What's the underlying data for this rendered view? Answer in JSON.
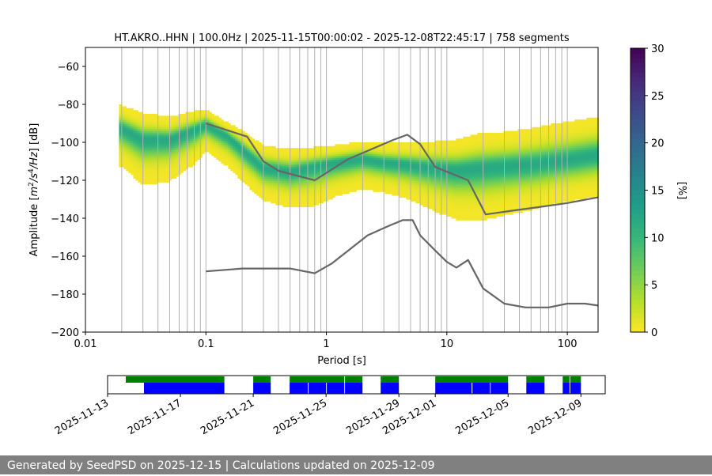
{
  "chart_data": {
    "type": "heatmap",
    "title": "HT.AKRO..HHN | 100.0Hz | 2025-11-15T00:00:02 - 2025-12-08T22:45:17 | 758 segments",
    "xlabel": "Period [s]",
    "ylabel": "Amplitude [m²/s⁴/Hz] [dB]",
    "xscale": "log",
    "xlim": [
      0.01,
      180
    ],
    "ylim": [
      -200,
      -50
    ],
    "xticks": [
      {
        "value": 0.01,
        "label": "0.01"
      },
      {
        "value": 0.1,
        "label": "0.1"
      },
      {
        "value": 1,
        "label": "1"
      },
      {
        "value": 10,
        "label": "10"
      },
      {
        "value": 100,
        "label": "100"
      }
    ],
    "yticks": [
      -60,
      -80,
      -100,
      -120,
      -140,
      -160,
      -180,
      -200
    ],
    "grid_x_periods": [
      0.02,
      0.03,
      0.04,
      0.05,
      0.06,
      0.07,
      0.08,
      0.09,
      0.1,
      0.2,
      0.3,
      0.4,
      0.5,
      0.6,
      0.7,
      0.8,
      0.9,
      1,
      2,
      3,
      4,
      5,
      6,
      7,
      8,
      9,
      10,
      20,
      30,
      40,
      50,
      60,
      70,
      80,
      90,
      100
    ],
    "colorbar": {
      "label": "[%]",
      "min": 0,
      "max": 30,
      "ticks": [
        0,
        5,
        10,
        15,
        20,
        25,
        30
      ],
      "colormap": "viridis_r"
    },
    "psd_envelope": {
      "periods": [
        0.02,
        0.03,
        0.05,
        0.08,
        0.1,
        0.15,
        0.2,
        0.3,
        0.5,
        0.8,
        1.2,
        2,
        3,
        4.5,
        6,
        8,
        12,
        18,
        30,
        50,
        90,
        180
      ],
      "mode": [
        -93,
        -99,
        -99,
        -94,
        -91,
        -97,
        -104,
        -114,
        -116,
        -113,
        -111,
        -109,
        -111,
        -112,
        -113,
        -114,
        -115,
        -114,
        -113,
        -112,
        -110,
        -107
      ],
      "spread_upper": [
        12,
        14,
        12,
        10,
        8,
        7,
        10,
        12,
        12,
        10,
        9,
        9,
        10,
        11,
        12,
        14,
        16,
        18,
        18,
        19,
        20,
        20
      ],
      "spread_lower": [
        20,
        24,
        22,
        18,
        14,
        16,
        17,
        17,
        19,
        21,
        18,
        16,
        16,
        18,
        20,
        23,
        26,
        28,
        26,
        24,
        22,
        22
      ],
      "start_period": 0.019,
      "end_period": 180
    },
    "series": [
      {
        "color": "#666666",
        "x": [
          0.1,
          0.22,
          0.3,
          0.4,
          0.8,
          1.5,
          3.5,
          4.7,
          6,
          8,
          15,
          21,
          35,
          60,
          100,
          180
        ],
        "y": [
          -90,
          -97,
          -110,
          -115,
          -120,
          -109,
          -99,
          -96,
          -101,
          -113,
          -120,
          -138,
          -136,
          -134,
          -132,
          -129
        ]
      },
      {
        "color": "#666666",
        "x": [
          0.1,
          0.16,
          0.2,
          0.3,
          0.5,
          0.8,
          1.1,
          2.2,
          3.3,
          4.3,
          5.2,
          6,
          8,
          10,
          12,
          15,
          20,
          30,
          45,
          70,
          100,
          140,
          180
        ],
        "y": [
          -168,
          -167,
          -166.5,
          -166.5,
          -166.5,
          -169,
          -164,
          -149,
          -144,
          -141,
          -141,
          -149,
          -157,
          -163,
          -166,
          -162,
          -177,
          -185,
          -187,
          -187,
          -185,
          -185,
          -186
        ]
      }
    ],
    "availability": {
      "date_ticks": [
        "2025-11-13",
        "2025-11-17",
        "2025-11-21",
        "2025-11-25",
        "2025-11-29",
        "2025-12-01",
        "2025-12-05",
        "2025-12-09"
      ],
      "date_range": [
        "2025-11-13T00:00",
        "2025-12-10T08:00"
      ],
      "data_available_color": "#0000ff",
      "psd_computed_color": "#008000",
      "data_available": [
        [
          "2025-11-15T00:00",
          "2025-11-19T10:00"
        ],
        [
          "2025-11-21T00:00",
          "2025-11-21T23:00"
        ],
        [
          "2025-11-23T00:00",
          "2025-11-24T00:00"
        ],
        [
          "2025-11-24T01:00",
          "2025-11-25T00:00"
        ],
        [
          "2025-11-25T01:00",
          "2025-11-26T00:00"
        ],
        [
          "2025-11-26T01:00",
          "2025-11-27T00:00"
        ],
        [
          "2025-11-28T00:00",
          "2025-11-29T00:00"
        ],
        [
          "2025-12-01T00:00",
          "2025-12-03T00:00"
        ],
        [
          "2025-12-03T01:00",
          "2025-12-04T00:00"
        ],
        [
          "2025-12-04T01:00",
          "2025-12-05T00:00"
        ],
        [
          "2025-12-06T00:00",
          "2025-12-07T00:00"
        ],
        [
          "2025-12-08T00:00",
          "2025-12-08T09:00"
        ],
        [
          "2025-12-08T10:00",
          "2025-12-09T00:00"
        ]
      ],
      "psd_computed": [
        [
          "2025-11-14T00:00",
          "2025-11-19T10:00"
        ],
        [
          "2025-11-21T00:00",
          "2025-11-21T23:00"
        ],
        [
          "2025-11-23T00:00",
          "2025-11-26T00:00"
        ],
        [
          "2025-11-26T01:00",
          "2025-11-27T00:00"
        ],
        [
          "2025-11-28T00:00",
          "2025-11-29T00:00"
        ],
        [
          "2025-12-01T00:00",
          "2025-12-05T00:00"
        ],
        [
          "2025-12-06T00:00",
          "2025-12-07T00:00"
        ],
        [
          "2025-12-08T00:00",
          "2025-12-08T09:00"
        ],
        [
          "2025-12-08T10:00",
          "2025-12-09T00:00"
        ]
      ]
    }
  },
  "footer": {
    "text": "Generated by SeedPSD on 2025-12-15 | Calculations updated on 2025-12-09"
  }
}
